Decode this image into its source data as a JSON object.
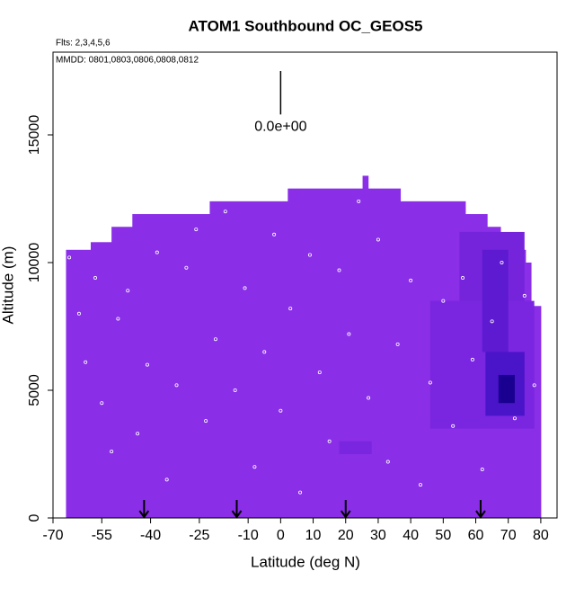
{
  "chart_data": {
    "type": "curtain",
    "title": "ATOM1 Southbound OC_GEOS5",
    "subtitle": "Flts: 2,3,4,5,6",
    "annotation": "MMDD: 0801,0803,0806,0808,0812",
    "x_label": "Latitude (deg N)",
    "y_label": "Altitude (m)",
    "xlim": [
      -70,
      85
    ],
    "ylim": [
      0,
      18240
    ],
    "xticks": [
      -70,
      -55,
      -40,
      -25,
      -10,
      0,
      10,
      20,
      30,
      40,
      50,
      60,
      70,
      80
    ],
    "yticks": [
      0,
      5000,
      10000,
      15000
    ],
    "color": "#8a2ee8",
    "columns": [
      {
        "lat0": -66,
        "lat1": -58.4,
        "top": 10500
      },
      {
        "lat0": -58.4,
        "lat1": -52,
        "top": 10800
      },
      {
        "lat0": -52,
        "lat1": -45.6,
        "top": 11400
      },
      {
        "lat0": -45.6,
        "lat1": -21.8,
        "top": 11900
      },
      {
        "lat0": -21.8,
        "lat1": 2.2,
        "top": 12400
      },
      {
        "lat0": 2.2,
        "lat1": 25.2,
        "top": 12900
      },
      {
        "lat0": 25.2,
        "lat1": 26.9,
        "top": 13400
      },
      {
        "lat0": 26.9,
        "lat1": 36.8,
        "top": 12900
      },
      {
        "lat0": 36.8,
        "lat1": 56.8,
        "top": 12400
      },
      {
        "lat0": 56.8,
        "lat1": 63.5,
        "top": 11900
      },
      {
        "lat0": 63.5,
        "lat1": 67.6,
        "top": 11400
      },
      {
        "lat0": 67.6,
        "lat1": 71.4,
        "top": 11000
      },
      {
        "lat0": 71.4,
        "lat1": 75.3,
        "top": 10500
      },
      {
        "lat0": 75.3,
        "lat1": 77,
        "top": 10000
      },
      {
        "lat0": 77,
        "lat1": 80,
        "top": 8300
      }
    ],
    "patches": [
      {
        "lat0": 46,
        "lat1": 78,
        "alt0": 3500,
        "alt1": 8500,
        "color": "#7a26e0"
      },
      {
        "lat0": 55,
        "lat1": 75,
        "alt0": 8500,
        "alt1": 11200,
        "color": "#7524dc"
      },
      {
        "lat0": 62,
        "lat1": 70,
        "alt0": 6500,
        "alt1": 10500,
        "color": "#5e1ad0"
      },
      {
        "lat0": 63,
        "lat1": 75,
        "alt0": 4000,
        "alt1": 6500,
        "color": "#4a14c8"
      },
      {
        "lat0": 67,
        "lat1": 72,
        "alt0": 4500,
        "alt1": 5600,
        "color": "#1a0090"
      },
      {
        "lat0": 18,
        "lat1": 28,
        "alt0": 2500,
        "alt1": 3000,
        "color": "#7a26e0"
      }
    ],
    "obs_points": [
      [
        -65,
        10200
      ],
      [
        -62,
        8000
      ],
      [
        -60,
        6100
      ],
      [
        -57,
        9400
      ],
      [
        -55,
        4500
      ],
      [
        -52,
        2600
      ],
      [
        -50,
        7800
      ],
      [
        -47,
        8900
      ],
      [
        -44,
        3300
      ],
      [
        -41,
        6000
      ],
      [
        -38,
        10400
      ],
      [
        -35,
        1500
      ],
      [
        -32,
        5200
      ],
      [
        -29,
        9800
      ],
      [
        -26,
        11300
      ],
      [
        -23,
        3800
      ],
      [
        -20,
        7000
      ],
      [
        -17,
        12000
      ],
      [
        -14,
        5000
      ],
      [
        -11,
        9000
      ],
      [
        -8,
        2000
      ],
      [
        -5,
        6500
      ],
      [
        -2,
        11100
      ],
      [
        0,
        4200
      ],
      [
        3,
        8200
      ],
      [
        6,
        1000
      ],
      [
        9,
        10300
      ],
      [
        12,
        5700
      ],
      [
        15,
        3000
      ],
      [
        18,
        9700
      ],
      [
        21,
        7200
      ],
      [
        24,
        12400
      ],
      [
        27,
        4700
      ],
      [
        30,
        10900
      ],
      [
        33,
        2200
      ],
      [
        36,
        6800
      ],
      [
        40,
        9300
      ],
      [
        43,
        1300
      ],
      [
        46,
        5300
      ],
      [
        50,
        8500
      ],
      [
        53,
        3600
      ],
      [
        56,
        9400
      ],
      [
        59,
        6200
      ],
      [
        62,
        1900
      ],
      [
        65,
        7700
      ],
      [
        68,
        10000
      ],
      [
        72,
        3900
      ],
      [
        75,
        8700
      ],
      [
        78,
        5200
      ]
    ],
    "flight_markers": [
      -42,
      -13.5,
      20,
      61.5
    ],
    "scale_bar": {
      "lat": 0,
      "alt0": 15800,
      "alt1": 17500,
      "label": "0.0e+00"
    }
  }
}
